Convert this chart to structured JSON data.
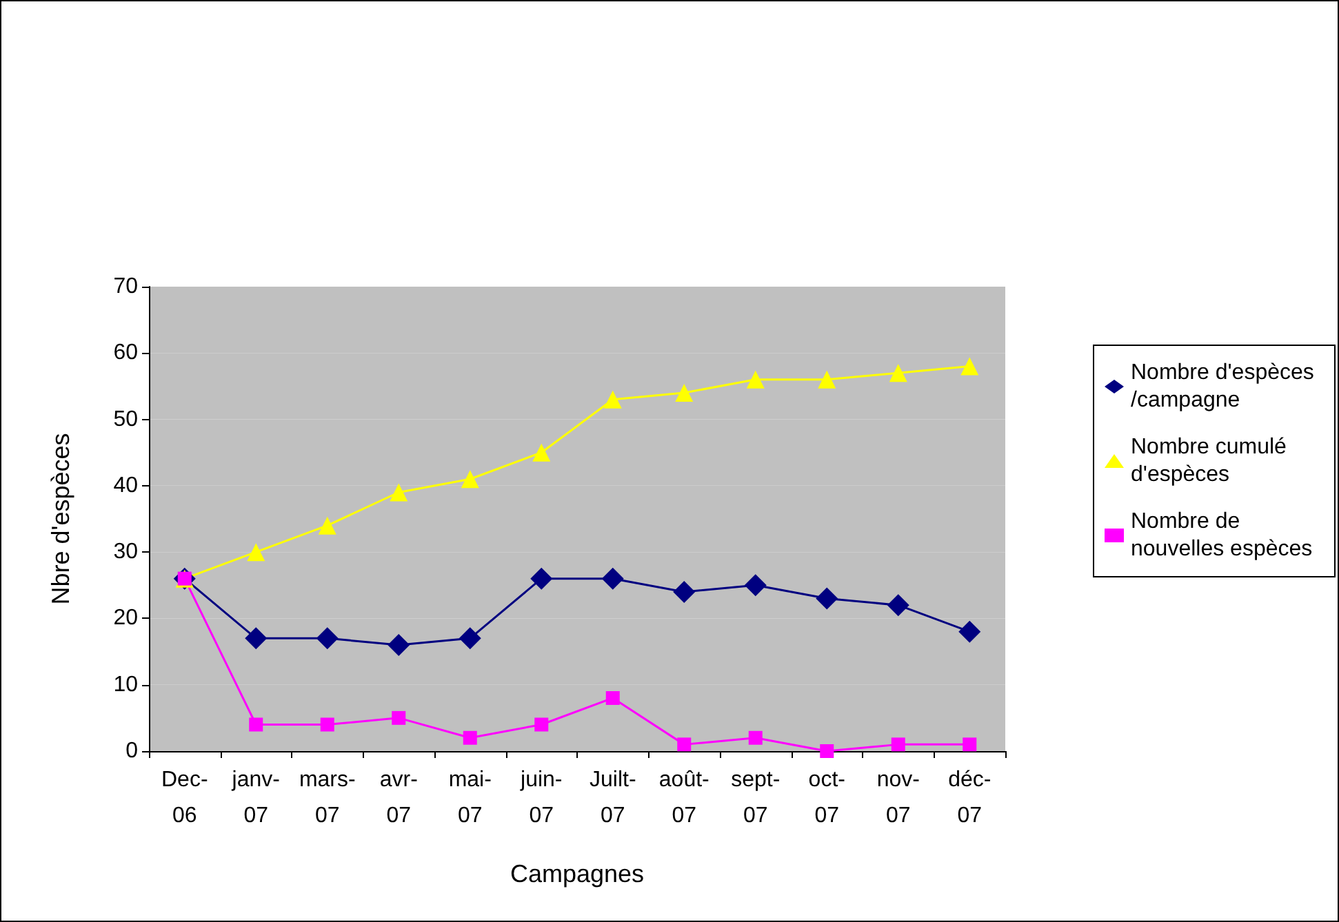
{
  "chart_data": {
    "type": "line",
    "xlabel": "Campagnes",
    "ylabel": "Nbre d'espèces",
    "categories": [
      "Dec-06",
      "janv-07",
      "mars-07",
      "avr-07",
      "mai-07",
      "juin-07",
      "Juilt-07",
      "août-07",
      "sept-07",
      "oct-07",
      "nov-07",
      "déc-07"
    ],
    "series": [
      {
        "name": "Nombre d'espèces/campagne",
        "color": "#000080",
        "marker": "diamond",
        "values": [
          26,
          17,
          17,
          16,
          17,
          26,
          26,
          24,
          25,
          23,
          22,
          18
        ]
      },
      {
        "name": "Nombre cumulé d'espèces",
        "color": "#ffff00",
        "marker": "triangle",
        "values": [
          26,
          30,
          34,
          39,
          41,
          45,
          53,
          54,
          56,
          56,
          57,
          58
        ]
      },
      {
        "name": "Nombre de nouvelles espèces",
        "color": "#ff00ff",
        "marker": "square",
        "values": [
          26,
          4,
          4,
          5,
          2,
          4,
          8,
          1,
          2,
          0,
          1,
          1
        ]
      }
    ],
    "ylim": [
      0,
      70
    ],
    "yticks": [
      0,
      10,
      20,
      30,
      40,
      50,
      60,
      70
    ],
    "grid": false,
    "legend": "right",
    "line_style": "solid"
  }
}
